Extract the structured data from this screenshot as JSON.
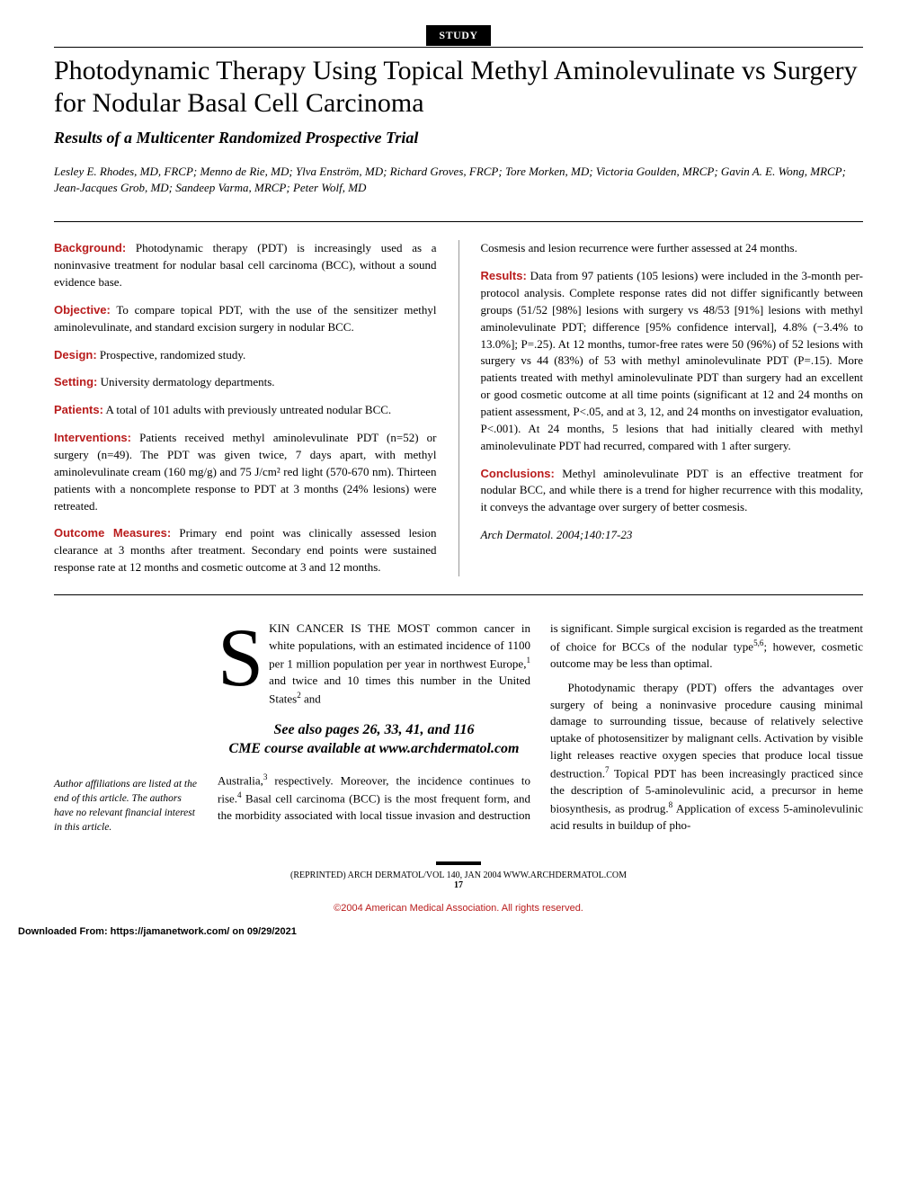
{
  "badge": "STUDY",
  "title": "Photodynamic Therapy Using Topical Methyl Aminolevulinate vs Surgery for Nodular Basal Cell Carcinoma",
  "subtitle": "Results of a Multicenter Randomized Prospective Trial",
  "authors": "Lesley E. Rhodes, MD, FRCP; Menno de Rie, MD; Ylva Enström, MD; Richard Groves, FRCP; Tore Morken, MD; Victoria Goulden, MRCP; Gavin A. E. Wong, MRCP; Jean-Jacques Grob, MD; Sandeep Varma, MRCP; Peter Wolf, MD",
  "abstract": {
    "background": {
      "label": "Background:",
      "text": " Photodynamic therapy (PDT) is increasingly used as a noninvasive treatment for nodular basal cell carcinoma (BCC), without a sound evidence base."
    },
    "objective": {
      "label": "Objective:",
      "text": " To compare topical PDT, with the use of the sensitizer methyl aminolevulinate, and standard excision surgery in nodular BCC."
    },
    "design": {
      "label": "Design:",
      "text": " Prospective, randomized study."
    },
    "setting": {
      "label": "Setting:",
      "text": " University dermatology departments."
    },
    "patients": {
      "label": "Patients:",
      "text": " A total of 101 adults with previously untreated nodular BCC."
    },
    "interventions": {
      "label": "Interventions:",
      "text": " Patients received methyl aminolevulinate PDT (n=52) or surgery (n=49). The PDT was given twice, 7 days apart, with methyl aminolevulinate cream (160 mg/g) and 75 J/cm² red light (570-670 nm). Thirteen patients with a noncomplete response to PDT at 3 months (24% lesions) were retreated."
    },
    "outcome": {
      "label": "Outcome Measures:",
      "text": " Primary end point was clinically assessed lesion clearance at 3 months after treatment. Secondary end points were sustained response rate at 12 months and cosmetic outcome at 3 and 12 months."
    },
    "cosmesis": "Cosmesis and lesion recurrence were further assessed at 24 months.",
    "results": {
      "label": "Results:",
      "text": " Data from 97 patients (105 lesions) were included in the 3-month per-protocol analysis. Complete response rates did not differ significantly between groups (51/52 [98%] lesions with surgery vs 48/53 [91%] lesions with methyl aminolevulinate PDT; difference [95% confidence interval], 4.8% (−3.4% to 13.0%]; P=.25). At 12 months, tumor-free rates were 50 (96%) of 52 lesions with surgery vs 44 (83%) of 53 with methyl aminolevulinate PDT (P=.15). More patients treated with methyl aminolevulinate PDT than surgery had an excellent or good cosmetic outcome at all time points (significant at 12 and 24 months on patient assessment, P<.05, and at 3, 12, and 24 months on investigator evaluation, P<.001). At 24 months, 5 lesions that had initially cleared with methyl aminolevulinate PDT had recurred, compared with 1 after surgery."
    },
    "conclusions": {
      "label": "Conclusions:",
      "text": " Methyl aminolevulinate PDT is an effective treatment for nodular BCC, and while there is a trend for higher recurrence with this modality, it conveys the advantage over surgery of better cosmesis."
    },
    "citation": "Arch Dermatol. 2004;140:17-23"
  },
  "body": {
    "dropcap": "S",
    "p1a": "KIN CANCER IS THE MOST common cancer in white populations, with an estimated incidence of 1100 per 1 million population per year in northwest Europe,",
    "p1b": " and twice and 10 times this number in the United States",
    "p1c": " and",
    "seealso": "See also pages 26, 33, 41, and 116\nCME course available at www.archdermatol.com",
    "p2a": "Australia,",
    "p2b": " respectively. Moreover, the incidence continues to rise.",
    "p2c": " Basal cell carcinoma (BCC) is the most frequent form, and the morbidity associated with local tis",
    "p3a": "sue invasion and destruction is significant. Simple surgical excision is regarded as the treatment of choice for BCCs of the nodular type",
    "p3b": "; however, cosmetic outcome may be less than optimal.",
    "p4a": "Photodynamic therapy (PDT) offers the advantages over surgery of being a noninvasive procedure causing minimal damage to surrounding tissue, because of relatively selective uptake of photosensitizer by malignant cells. Activation by visible light releases reactive oxygen species that produce local tissue destruction.",
    "p4b": " Topical PDT has been increasingly practiced since the description of 5-aminolevulinic acid, a precursor in heme biosynthesis, as prodrug.",
    "p4c": " Application of excess 5-aminolevulinic acid results in buildup of pho-"
  },
  "sidebar": "Author affiliations are listed at the end of this article. The authors have no relevant financial interest in this article.",
  "footer": {
    "line": "(REPRINTED) ARCH DERMATOL/VOL 140, JAN 2004    WWW.ARCHDERMATOL.COM",
    "page": "17",
    "copyright": "©2004 American Medical Association. All rights reserved.",
    "download": "Downloaded From: https://jamanetwork.com/ on 09/29/2021"
  },
  "colors": {
    "accent": "#b91c1c",
    "text": "#000000",
    "bg": "#ffffff"
  }
}
